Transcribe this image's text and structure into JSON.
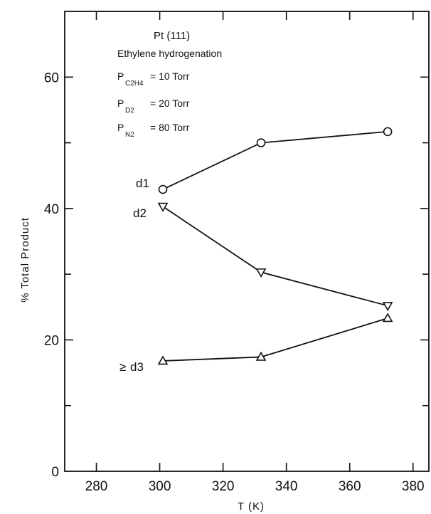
{
  "chart_data": {
    "type": "line",
    "title": "",
    "xlabel": "T (K)",
    "ylabel": "% Total Product",
    "xlim": [
      270,
      385
    ],
    "ylim": [
      0,
      70
    ],
    "x_ticks": [
      280,
      300,
      320,
      340,
      360,
      380
    ],
    "x_tick_labels": [
      "280",
      "300",
      "320",
      "340",
      "360",
      "380"
    ],
    "y_ticks": [
      0,
      20,
      40,
      60
    ],
    "y_tick_labels": [
      "0",
      "20",
      "40",
      "60"
    ],
    "grid": false,
    "annotation": {
      "title": "Pt (111)",
      "reaction": "Ethylene hydrogenation",
      "conditions": [
        {
          "symbol": "P",
          "sub": "C2H4",
          "value": "= 10 Torr"
        },
        {
          "symbol": "P",
          "sub": "D2",
          "value": "= 20 Torr"
        },
        {
          "symbol": "P",
          "sub": "N2",
          "value": "= 80 Torr"
        }
      ]
    },
    "series": [
      {
        "name": "d1",
        "label_prefix": "",
        "marker": "circle",
        "x": [
          301,
          332,
          372
        ],
        "y": [
          42.9,
          50.0,
          51.7
        ]
      },
      {
        "name": "d2",
        "label_prefix": "",
        "marker": "triangle-down",
        "x": [
          301,
          332,
          372
        ],
        "y": [
          40.3,
          30.3,
          25.2
        ]
      },
      {
        "name": "d3",
        "label_prefix": "≥",
        "marker": "triangle-up",
        "x": [
          301,
          332,
          372
        ],
        "y": [
          16.8,
          17.4,
          23.3
        ]
      }
    ]
  }
}
